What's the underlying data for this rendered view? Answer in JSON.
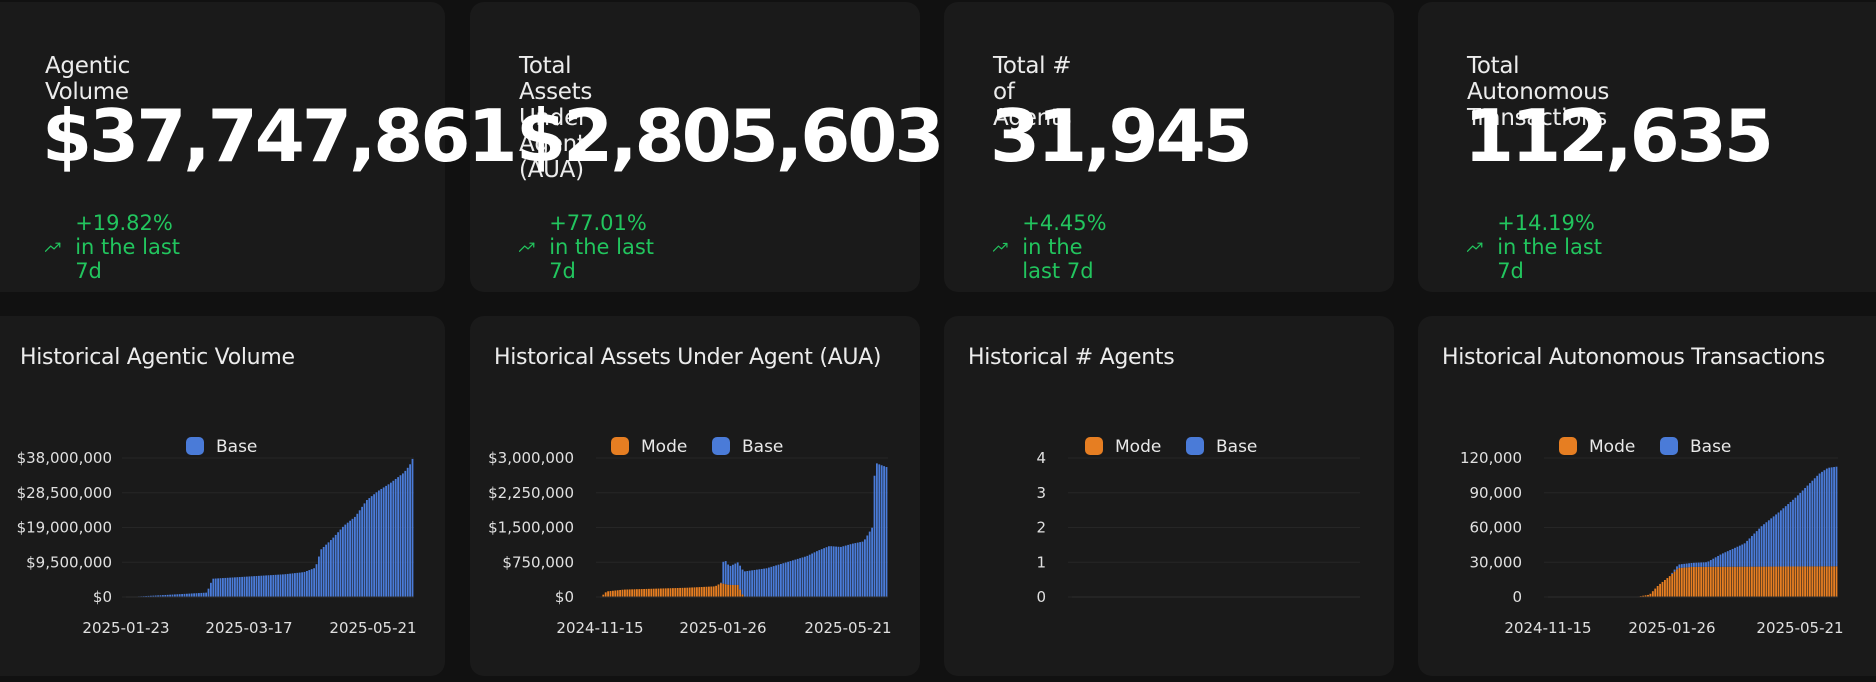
{
  "stats": [
    {
      "title": "Agentic Volume",
      "value": "$37,747,861",
      "change": "+19.82% in the last 7d"
    },
    {
      "title": "Total Assets Under Agent (AUA)",
      "value": "$2,805,603",
      "change": "+77.01% in the last 7d"
    },
    {
      "title": "Total # of Agents",
      "value": "31,945",
      "change": "+4.45% in the last 7d"
    },
    {
      "title": "Total Autonomous Transactions",
      "value": "112,635",
      "change": "+14.19% in the last 7d"
    }
  ],
  "colors": {
    "mode": "#e67e22",
    "base": "#4a7bd8",
    "positive": "#22c55e"
  },
  "chart_data": [
    {
      "type": "bar",
      "title": "Historical Agentic Volume",
      "legend": [
        "Base"
      ],
      "yticks": [
        "$0",
        "$9,500,000",
        "$19,000,000",
        "$28,500,000",
        "$38,000,000"
      ],
      "ylim": [
        0,
        38000000
      ],
      "xticks": [
        "2025-01-23",
        "2025-03-17",
        "2025-05-21"
      ],
      "series": [
        {
          "name": "Base",
          "points": [
            [
              0,
              0
            ],
            [
              0.1,
              400000
            ],
            [
              0.28,
              1200000
            ],
            [
              0.3,
              5000000
            ],
            [
              0.55,
              6200000
            ],
            [
              0.62,
              6800000
            ],
            [
              0.66,
              8000000
            ],
            [
              0.68,
              13000000
            ],
            [
              0.72,
              16000000
            ],
            [
              0.76,
              19500000
            ],
            [
              0.8,
              22000000
            ],
            [
              0.84,
              26500000
            ],
            [
              0.88,
              29000000
            ],
            [
              0.92,
              31000000
            ],
            [
              0.97,
              34000000
            ],
            [
              0.99,
              36000000
            ],
            [
              1,
              37747861
            ]
          ]
        }
      ]
    },
    {
      "type": "bar",
      "title": "Historical Assets Under Agent (AUA)",
      "legend": [
        "Mode",
        "Base"
      ],
      "yticks": [
        "$0",
        "$750,000",
        "$1,500,000",
        "$2,250,000",
        "$3,000,000"
      ],
      "ylim": [
        0,
        3000000
      ],
      "xticks": [
        "2024-11-15",
        "2025-01-26",
        "2025-05-21"
      ],
      "series": [
        {
          "name": "Mode",
          "points": [
            [
              0,
              0
            ],
            [
              0.02,
              120000
            ],
            [
              0.08,
              160000
            ],
            [
              0.3,
              200000
            ],
            [
              0.4,
              230000
            ],
            [
              0.42,
              300000
            ],
            [
              0.45,
              260000
            ],
            [
              0.48,
              260000
            ],
            [
              0.5,
              0
            ],
            [
              1,
              0
            ]
          ]
        },
        {
          "name": "Base",
          "points": [
            [
              0,
              0
            ],
            [
              0.42,
              0
            ],
            [
              0.43,
              550000
            ],
            [
              0.45,
              400000
            ],
            [
              0.5,
              550000
            ],
            [
              0.58,
              620000
            ],
            [
              0.65,
              750000
            ],
            [
              0.72,
              880000
            ],
            [
              0.76,
              1000000
            ],
            [
              0.8,
              1100000
            ],
            [
              0.84,
              1080000
            ],
            [
              0.88,
              1150000
            ],
            [
              0.92,
              1200000
            ],
            [
              0.95,
              1500000
            ],
            [
              0.96,
              2900000
            ],
            [
              0.98,
              2850000
            ],
            [
              1,
              2805603
            ]
          ]
        }
      ]
    },
    {
      "type": "bar",
      "title": "Historical # Agents",
      "legend": [
        "Mode",
        "Base"
      ],
      "yticks": [
        "0",
        "1",
        "2",
        "3",
        "4"
      ],
      "ylim": [
        0,
        4
      ],
      "xticks": [],
      "series": [
        {
          "name": "Mode",
          "points": []
        },
        {
          "name": "Base",
          "points": []
        }
      ]
    },
    {
      "type": "bar",
      "title": "Historical Autonomous Transactions",
      "legend": [
        "Mode",
        "Base"
      ],
      "yticks": [
        "0",
        "30,000",
        "60,000",
        "90,000",
        "120,000"
      ],
      "ylim": [
        0,
        120000
      ],
      "xticks": [
        "2024-11-15",
        "2025-01-26",
        "2025-05-21"
      ],
      "series": [
        {
          "name": "Mode",
          "points": [
            [
              0,
              0
            ],
            [
              0.3,
              15.0
            ],
            [
              0.35,
              2000
            ],
            [
              0.38,
              10000
            ],
            [
              0.42,
              18000
            ],
            [
              0.45,
              25000
            ],
            [
              0.5,
              26000
            ],
            [
              1,
              26500
            ]
          ]
        },
        {
          "name": "Base",
          "points": [
            [
              0,
              0
            ],
            [
              0.42,
              0
            ],
            [
              0.45,
              3000
            ],
            [
              0.55,
              4000
            ],
            [
              0.6,
              11000
            ],
            [
              0.68,
              20000
            ],
            [
              0.74,
              35000
            ],
            [
              0.8,
              47000
            ],
            [
              0.86,
              60000
            ],
            [
              0.9,
              70000
            ],
            [
              0.94,
              80000
            ],
            [
              0.97,
              85000
            ],
            [
              1,
              86000
            ]
          ]
        }
      ]
    }
  ]
}
